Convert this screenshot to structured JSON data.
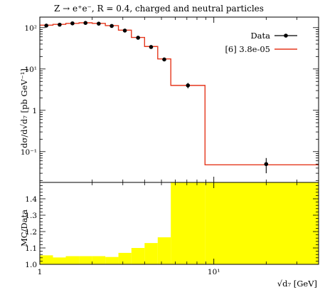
{
  "chart_data": {
    "title": "Z → e⁺e⁻, R = 0.4, charged and neutral particles",
    "xlabel": "√d₇ [GeV]",
    "ylabel_main": "dσ/d√d₇ [pb GeV⁻¹]",
    "ylabel_ratio": "MC/Data",
    "x_scale": "log",
    "y_scale_main": "log",
    "xlim": [
      1,
      40
    ],
    "ylim_main": [
      0.018,
      180
    ],
    "ylim_ratio": [
      1.0,
      1.5
    ],
    "x_ticks": [
      {
        "v": 1,
        "label": "1"
      },
      {
        "v": 10,
        "label": "10¹"
      }
    ],
    "y_ticks_main": [
      {
        "v": 100,
        "label": "10²"
      },
      {
        "v": 10,
        "label": "10¹"
      },
      {
        "v": 1,
        "label": "1"
      },
      {
        "v": 0.1,
        "label": "10⁻¹"
      }
    ],
    "y_ticks_ratio": [
      {
        "v": 1.0,
        "label": "1.0"
      },
      {
        "v": 1.1,
        "label": "1.1"
      },
      {
        "v": 1.2,
        "label": "1.2"
      },
      {
        "v": 1.3,
        "label": "1.3"
      },
      {
        "v": 1.4,
        "label": "1.4"
      }
    ],
    "bin_edges": [
      1.0,
      1.19,
      1.41,
      1.68,
      2.0,
      2.38,
      2.83,
      3.36,
      4.0,
      4.76,
      5.66,
      8.9,
      40.0
    ],
    "series": [
      {
        "name": "Data",
        "type": "points",
        "color": "#000000",
        "x": [
          1.09,
          1.3,
          1.54,
          1.83,
          2.18,
          2.59,
          3.08,
          3.67,
          4.36,
          5.19,
          7.1,
          20.0
        ],
        "y": [
          112,
          118,
          127,
          130,
          125,
          110,
          85,
          57,
          34,
          17,
          4.0,
          0.05
        ],
        "err": [
          7,
          7,
          7,
          7,
          7,
          6,
          5,
          4,
          2.5,
          1.5,
          0.6,
          0.02
        ]
      },
      {
        "name": "[6] 3.8e-05",
        "type": "histogram",
        "color": "#e5381e",
        "values": [
          115,
          120,
          127,
          131,
          127,
          112,
          87,
          58,
          35,
          17.5,
          4.0,
          0.048
        ]
      }
    ],
    "ratio": {
      "color": "#ffff00",
      "values": [
        1.055,
        1.042,
        1.05,
        1.05,
        1.05,
        1.045,
        1.07,
        1.1,
        1.13,
        1.165,
        1.5,
        1.5
      ]
    },
    "legend_position": "top-right",
    "grid": false
  }
}
